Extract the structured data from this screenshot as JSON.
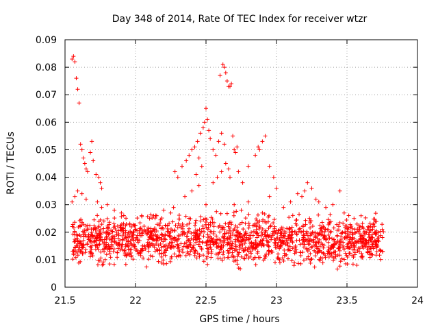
{
  "chart_data": {
    "type": "scatter",
    "title": "Day 348 of 2014, Rate Of TEC Index for receiver wtzr",
    "xlabel": "GPS time / hours",
    "ylabel": "ROTI / TECUs",
    "xlim": [
      21.5,
      24
    ],
    "ylim": [
      0,
      0.09
    ],
    "xticks": [
      "21.5",
      "22",
      "22.5",
      "23",
      "23.5",
      "24"
    ],
    "xtick_values": [
      21.5,
      22,
      22.5,
      23,
      23.5,
      24
    ],
    "yticks": [
      "0",
      "0.01",
      "0.02",
      "0.03",
      "0.04",
      "0.05",
      "0.06",
      "0.07",
      "0.08",
      "0.09"
    ],
    "ytick_values": [
      0,
      0.01,
      0.02,
      0.03,
      0.04,
      0.05,
      0.06,
      0.07,
      0.08,
      0.09
    ],
    "grid": true,
    "marker": "+",
    "color": "#ff0000",
    "series": [
      {
        "name": "ROTI",
        "points": [
          [
            21.55,
            0.083
          ],
          [
            21.56,
            0.084
          ],
          [
            21.57,
            0.082
          ],
          [
            21.58,
            0.076
          ],
          [
            21.59,
            0.072
          ],
          [
            21.6,
            0.067
          ],
          [
            21.61,
            0.052
          ],
          [
            21.62,
            0.05
          ],
          [
            21.63,
            0.047
          ],
          [
            21.64,
            0.045
          ],
          [
            21.65,
            0.043
          ],
          [
            21.66,
            0.042
          ],
          [
            21.68,
            0.049
          ],
          [
            21.69,
            0.053
          ],
          [
            21.7,
            0.046
          ],
          [
            21.72,
            0.041
          ],
          [
            21.74,
            0.04
          ],
          [
            21.75,
            0.038
          ],
          [
            21.76,
            0.036
          ],
          [
            21.55,
            0.031
          ],
          [
            21.57,
            0.033
          ],
          [
            21.59,
            0.035
          ],
          [
            21.62,
            0.034
          ],
          [
            21.65,
            0.032
          ],
          [
            21.73,
            0.031
          ],
          [
            21.76,
            0.029
          ],
          [
            22.28,
            0.042
          ],
          [
            22.3,
            0.04
          ],
          [
            22.33,
            0.044
          ],
          [
            22.36,
            0.046
          ],
          [
            22.38,
            0.048
          ],
          [
            22.4,
            0.05
          ],
          [
            22.42,
            0.051
          ],
          [
            22.44,
            0.053
          ],
          [
            22.46,
            0.056
          ],
          [
            22.48,
            0.058
          ],
          [
            22.49,
            0.06
          ],
          [
            22.5,
            0.065
          ],
          [
            22.51,
            0.061
          ],
          [
            22.52,
            0.057
          ],
          [
            22.53,
            0.054
          ],
          [
            22.45,
            0.047
          ],
          [
            22.47,
            0.044
          ],
          [
            22.43,
            0.041
          ],
          [
            22.55,
            0.05
          ],
          [
            22.57,
            0.048
          ],
          [
            22.59,
            0.053
          ],
          [
            22.61,
            0.056
          ],
          [
            22.63,
            0.052
          ],
          [
            22.62,
            0.081
          ],
          [
            22.63,
            0.08
          ],
          [
            22.64,
            0.078
          ],
          [
            22.6,
            0.077
          ],
          [
            22.65,
            0.075
          ],
          [
            22.66,
            0.073
          ],
          [
            22.67,
            0.073
          ],
          [
            22.68,
            0.074
          ],
          [
            22.69,
            0.055
          ],
          [
            22.7,
            0.05
          ],
          [
            22.71,
            0.049
          ],
          [
            22.72,
            0.051
          ],
          [
            22.64,
            0.045
          ],
          [
            22.66,
            0.043
          ],
          [
            22.67,
            0.04
          ],
          [
            22.61,
            0.042
          ],
          [
            22.58,
            0.04
          ],
          [
            22.55,
            0.038
          ],
          [
            22.73,
            0.042
          ],
          [
            22.76,
            0.038
          ],
          [
            22.8,
            0.044
          ],
          [
            22.85,
            0.048
          ],
          [
            22.87,
            0.051
          ],
          [
            22.88,
            0.05
          ],
          [
            22.9,
            0.053
          ],
          [
            22.92,
            0.055
          ],
          [
            22.95,
            0.044
          ],
          [
            22.98,
            0.04
          ],
          [
            23.0,
            0.036
          ],
          [
            23.1,
            0.031
          ],
          [
            23.15,
            0.034
          ],
          [
            23.18,
            0.033
          ],
          [
            23.2,
            0.035
          ],
          [
            23.22,
            0.038
          ],
          [
            23.25,
            0.036
          ],
          [
            23.28,
            0.032
          ],
          [
            23.3,
            0.031
          ],
          [
            23.35,
            0.029
          ],
          [
            23.4,
            0.03
          ],
          [
            23.45,
            0.035
          ],
          [
            23.48,
            0.027
          ],
          [
            23.55,
            0.025
          ],
          [
            23.6,
            0.026
          ],
          [
            23.65,
            0.022
          ],
          [
            23.7,
            0.02
          ],
          [
            23.75,
            0.021
          ],
          [
            22.35,
            0.033
          ],
          [
            22.4,
            0.035
          ],
          [
            22.45,
            0.037
          ],
          [
            22.5,
            0.03
          ],
          [
            22.7,
            0.03
          ],
          [
            22.75,
            0.028
          ],
          [
            22.8,
            0.031
          ],
          [
            22.9,
            0.027
          ],
          [
            22.95,
            0.033
          ],
          [
            23.05,
            0.029
          ],
          [
            21.8,
            0.03
          ],
          [
            21.85,
            0.028
          ],
          [
            21.9,
            0.027
          ],
          [
            22.1,
            0.025
          ],
          [
            22.15,
            0.026
          ],
          [
            22.2,
            0.028
          ],
          [
            22.25,
            0.027
          ],
          [
            22.27,
            0.029
          ]
        ],
        "band": {
          "x_range": [
            21.55,
            23.76
          ],
          "y_range": [
            0.005,
            0.028
          ],
          "approx_count": 1600
        }
      }
    ]
  }
}
